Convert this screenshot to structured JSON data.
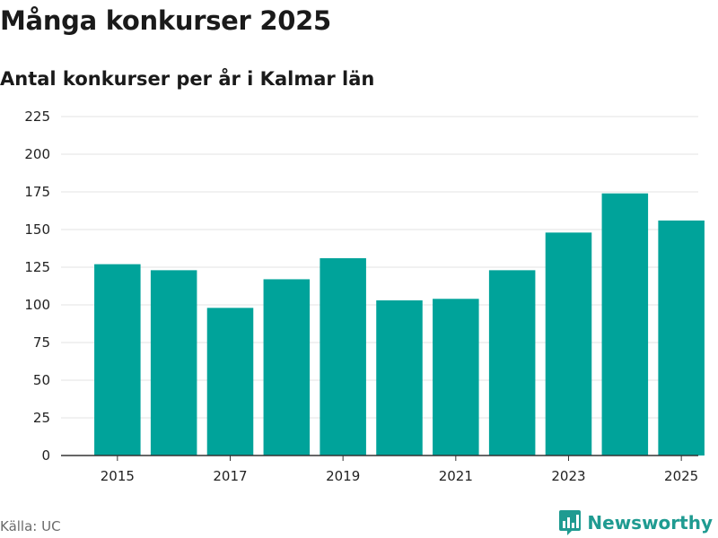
{
  "header": {
    "title": "Många konkurser 2025",
    "subtitle": "Antal konkurser per år i Kalmar län"
  },
  "footer": {
    "source": "Källa: UC",
    "brand": "Newsworthy",
    "brand_icon": "bar-chart-badge-icon",
    "brand_color": "#1f9b91"
  },
  "chart_data": {
    "type": "bar",
    "categories": [
      "2015",
      "2016",
      "2017",
      "2018",
      "2019",
      "2020",
      "2021",
      "2022",
      "2023",
      "2024",
      "2025"
    ],
    "values": [
      127,
      123,
      98,
      117,
      131,
      103,
      104,
      123,
      148,
      174,
      156
    ],
    "x_tick_labels": [
      "2015",
      "2017",
      "2019",
      "2021",
      "2023",
      "2025"
    ],
    "y_ticks": [
      0,
      25,
      50,
      75,
      100,
      125,
      150,
      175,
      200,
      225
    ],
    "ylim": [
      0,
      225
    ],
    "xlabel": "",
    "ylabel": "",
    "grid": true,
    "bar_color": "#00a39a"
  }
}
